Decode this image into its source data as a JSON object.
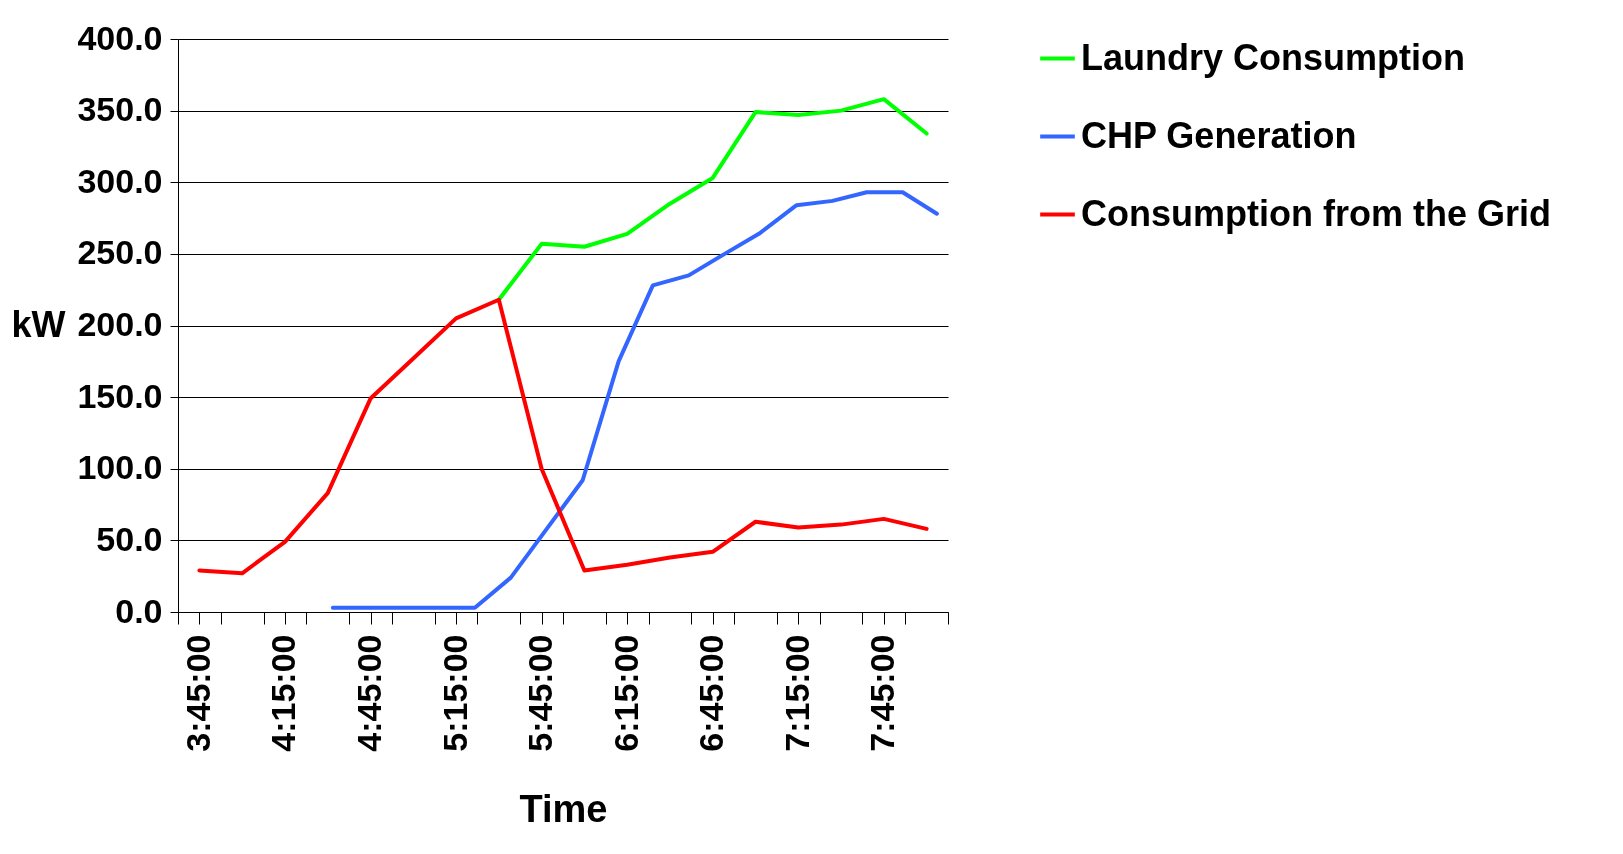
{
  "chart_data": {
    "type": "line",
    "xlabel": "Time",
    "ylabel": "kW",
    "xlim": [
      3.625,
      8.125
    ],
    "xticks": [
      {
        "value": 3.625,
        "label": null
      },
      {
        "value": 3.75,
        "label": "3:45:00"
      },
      {
        "value": 3.875,
        "label": null
      },
      {
        "value": 4.125,
        "label": null
      },
      {
        "value": 4.25,
        "label": "4:15:00"
      },
      {
        "value": 4.375,
        "label": null
      },
      {
        "value": 4.625,
        "label": null
      },
      {
        "value": 4.75,
        "label": "4:45:00"
      },
      {
        "value": 4.875,
        "label": null
      },
      {
        "value": 5.125,
        "label": null
      },
      {
        "value": 5.25,
        "label": "5:15:00"
      },
      {
        "value": 5.375,
        "label": null
      },
      {
        "value": 5.625,
        "label": null
      },
      {
        "value": 5.75,
        "label": "5:45:00"
      },
      {
        "value": 5.875,
        "label": null
      },
      {
        "value": 6.125,
        "label": null
      },
      {
        "value": 6.25,
        "label": "6:15:00"
      },
      {
        "value": 6.375,
        "label": null
      },
      {
        "value": 6.625,
        "label": null
      },
      {
        "value": 6.75,
        "label": "6:45:00"
      },
      {
        "value": 6.875,
        "label": null
      },
      {
        "value": 7.125,
        "label": null
      },
      {
        "value": 7.25,
        "label": "7:15:00"
      },
      {
        "value": 7.375,
        "label": null
      },
      {
        "value": 7.625,
        "label": null
      },
      {
        "value": 7.75,
        "label": "7:45:00"
      },
      {
        "value": 7.875,
        "label": null
      },
      {
        "value": 8.125,
        "label": null
      }
    ],
    "ylim": [
      0,
      400
    ],
    "yticks": [
      {
        "value": 0,
        "label": "0.0"
      },
      {
        "value": 50,
        "label": "50.0"
      },
      {
        "value": 100,
        "label": "100.0"
      },
      {
        "value": 150,
        "label": "150.0"
      },
      {
        "value": 200,
        "label": "200.0"
      },
      {
        "value": 250,
        "label": "250.0"
      },
      {
        "value": 300,
        "label": "300.0"
      },
      {
        "value": 350,
        "label": "350.0"
      },
      {
        "value": 400,
        "label": "400.0"
      }
    ],
    "grid": "y",
    "legend": "right",
    "marker": "none",
    "line_style": "solid",
    "series": [
      {
        "name": "Laundry Consumption",
        "color": "#00ff00",
        "x": [
          5.5,
          5.75,
          6.0,
          6.25,
          6.5,
          6.75,
          7.0,
          7.25,
          7.5,
          7.75,
          8.0
        ],
        "values": [
          218,
          257,
          255,
          264,
          285,
          303,
          349,
          347,
          350,
          358,
          334
        ]
      },
      {
        "name": "CHP Generation",
        "color": "#3366ff",
        "x": [
          4.53,
          4.74,
          4.95,
          5.15,
          5.36,
          5.57,
          5.78,
          5.99,
          6.2,
          6.4,
          6.61,
          6.82,
          7.02,
          7.24,
          7.45,
          7.65,
          7.86,
          8.06
        ],
        "values": [
          3,
          3,
          3,
          3,
          3,
          24,
          58,
          92,
          175,
          228,
          235,
          250,
          264,
          284,
          287,
          293,
          293,
          278
        ]
      },
      {
        "name": "Consumption from the Grid",
        "color": "#ff0000",
        "x": [
          3.75,
          4.0,
          4.25,
          4.5,
          4.75,
          5.0,
          5.25,
          5.5,
          5.75,
          6.0,
          6.25,
          6.5,
          6.75,
          7.0,
          7.25,
          7.5,
          7.75,
          8.0
        ],
        "values": [
          29,
          27,
          49,
          83,
          149,
          177,
          205,
          218,
          100,
          29,
          33,
          38,
          42,
          63,
          59,
          61,
          65,
          58
        ]
      }
    ]
  }
}
